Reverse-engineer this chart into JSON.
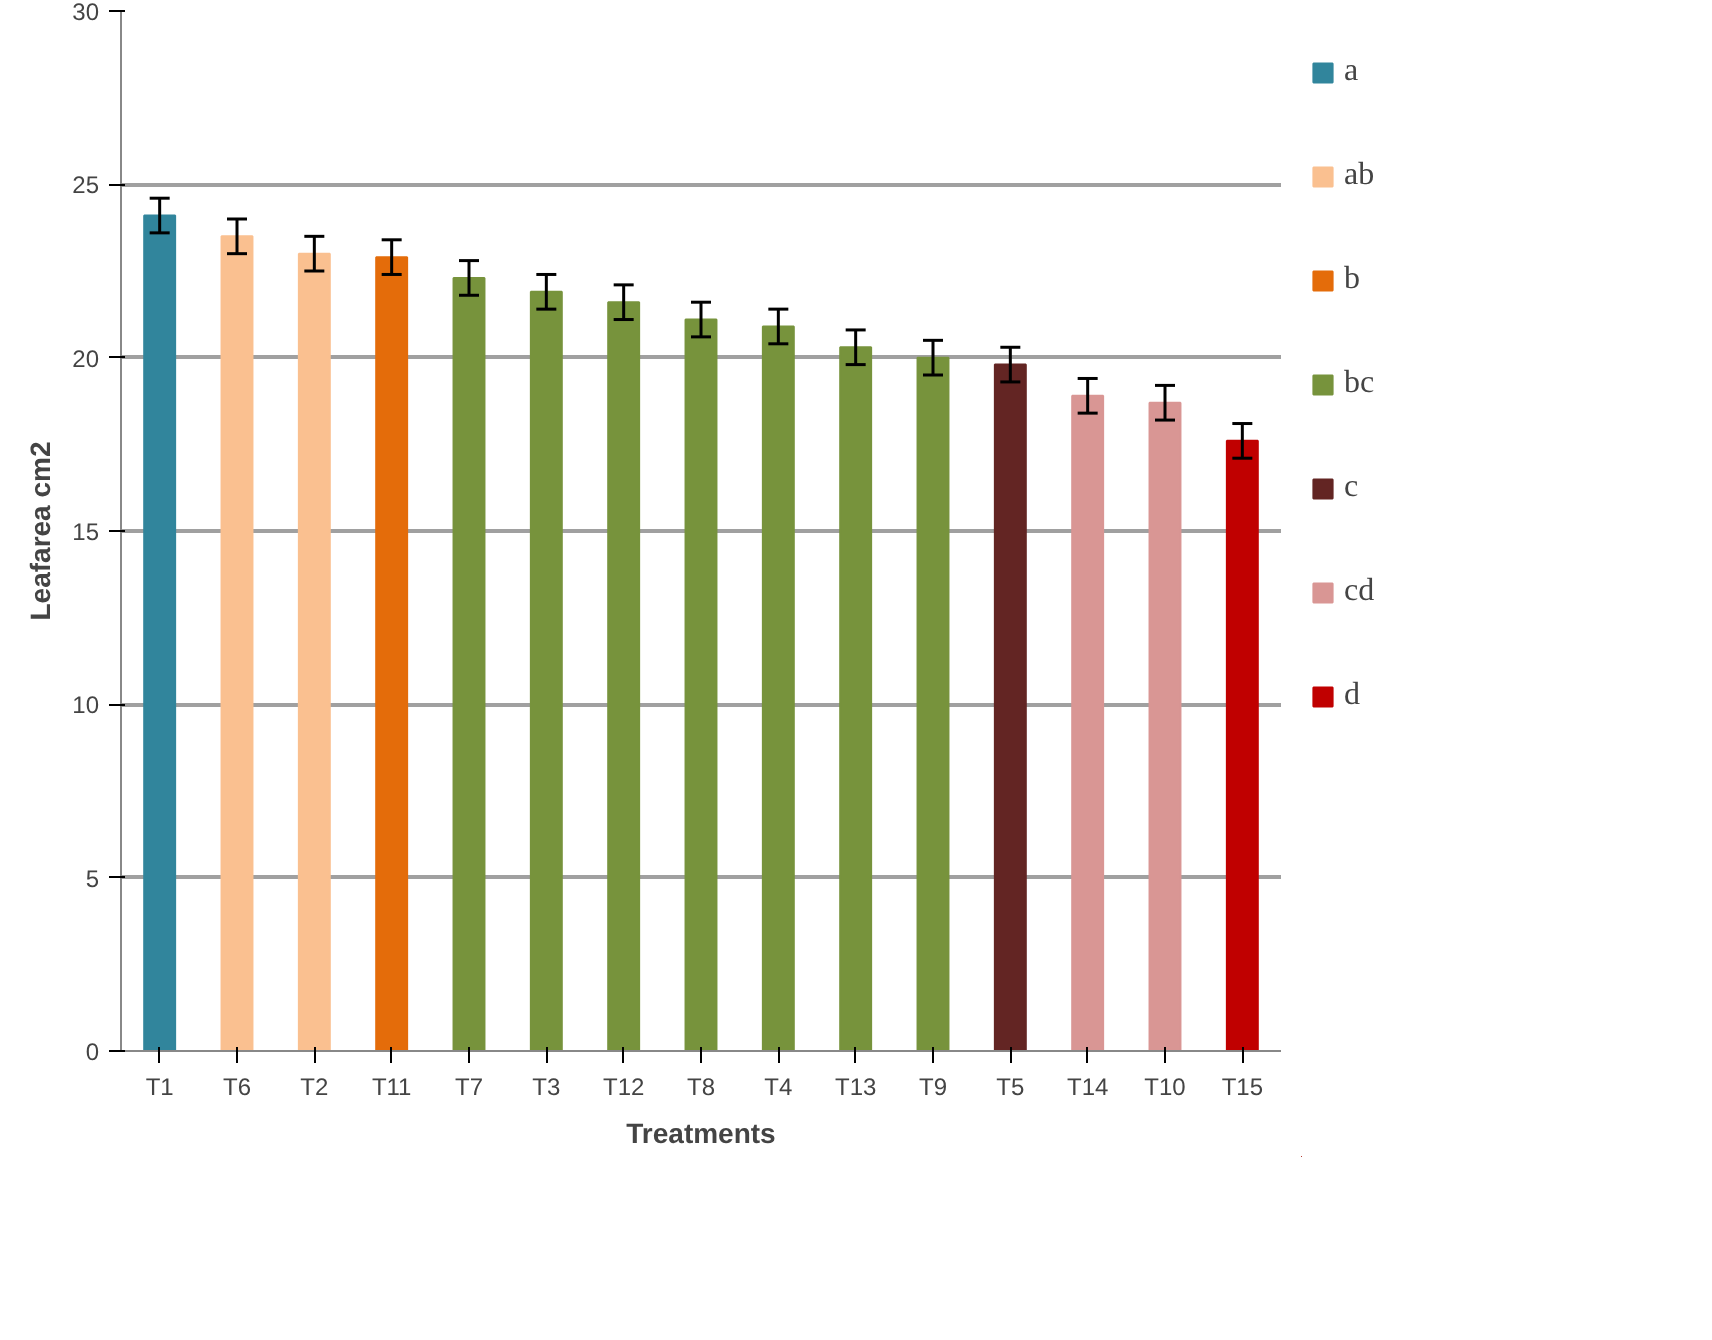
{
  "chart_data": {
    "type": "bar",
    "xlabel": "Treatments",
    "ylabel": "Leafarea cm2",
    "categories": [
      "T1",
      "T6",
      "T2",
      "T11",
      "T7",
      "T3",
      "T12",
      "T8",
      "T4",
      "T13",
      "T9",
      "T5",
      "T14",
      "T10",
      "T15"
    ],
    "series": [
      {
        "name": "a",
        "color": "#31859c",
        "values": [
          24.1,
          null,
          null,
          null,
          null,
          null,
          null,
          null,
          null,
          null,
          null,
          null,
          null,
          null,
          null
        ],
        "errors": [
          0.5,
          null,
          null,
          null,
          null,
          null,
          null,
          null,
          null,
          null,
          null,
          null,
          null,
          null,
          null
        ]
      },
      {
        "name": "ab",
        "color": "#fac090",
        "values": [
          null,
          23.5,
          23.0,
          null,
          null,
          null,
          null,
          null,
          null,
          null,
          null,
          null,
          null,
          null,
          null
        ],
        "errors": [
          null,
          0.5,
          0.5,
          null,
          null,
          null,
          null,
          null,
          null,
          null,
          null,
          null,
          null,
          null,
          null
        ]
      },
      {
        "name": "b",
        "color": "#e46c0a",
        "values": [
          null,
          null,
          null,
          22.9,
          null,
          null,
          null,
          null,
          null,
          null,
          null,
          null,
          null,
          null,
          null
        ],
        "errors": [
          null,
          null,
          null,
          0.5,
          null,
          null,
          null,
          null,
          null,
          null,
          null,
          null,
          null,
          null,
          null
        ]
      },
      {
        "name": "bc",
        "color": "#77933c",
        "values": [
          null,
          null,
          null,
          null,
          22.3,
          21.9,
          21.6,
          21.1,
          20.9,
          20.3,
          20.0,
          null,
          null,
          null,
          null
        ],
        "errors": [
          null,
          null,
          null,
          null,
          0.5,
          0.5,
          0.5,
          0.5,
          0.5,
          0.5,
          0.5,
          null,
          null,
          null,
          null
        ]
      },
      {
        "name": "c",
        "color": "#632523",
        "values": [
          null,
          null,
          null,
          null,
          null,
          null,
          null,
          null,
          null,
          null,
          null,
          19.8,
          null,
          null,
          null
        ],
        "errors": [
          null,
          null,
          null,
          null,
          null,
          null,
          null,
          null,
          null,
          null,
          null,
          0.5,
          null,
          null,
          null
        ]
      },
      {
        "name": "cd",
        "color": "#d99694",
        "values": [
          null,
          null,
          null,
          null,
          null,
          null,
          null,
          null,
          null,
          null,
          null,
          null,
          18.9,
          18.7,
          null
        ],
        "errors": [
          null,
          null,
          null,
          null,
          null,
          null,
          null,
          null,
          null,
          null,
          null,
          null,
          0.5,
          0.5,
          null
        ]
      },
      {
        "name": "d",
        "color": "#c00000",
        "values": [
          null,
          null,
          null,
          null,
          null,
          null,
          null,
          null,
          null,
          null,
          null,
          null,
          null,
          null,
          17.6
        ],
        "errors": [
          null,
          null,
          null,
          null,
          null,
          null,
          null,
          null,
          null,
          null,
          null,
          null,
          null,
          null,
          0.5
        ]
      }
    ],
    "ylim": [
      0,
      30
    ],
    "yticks": [
      0,
      5,
      10,
      15,
      20,
      25,
      30
    ],
    "grid": "y",
    "legend": "right"
  }
}
